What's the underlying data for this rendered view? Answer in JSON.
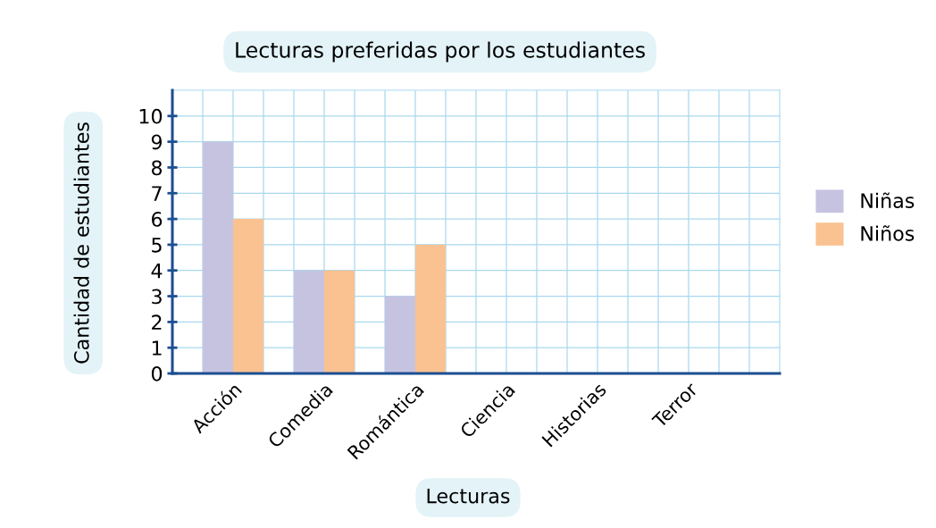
{
  "chart_data": {
    "type": "bar",
    "title": "Lecturas preferidas por los estudiantes",
    "xlabel": "Lecturas",
    "ylabel": "Cantidad de estudiantes",
    "categories": [
      "Acción",
      "Comedia",
      "Romántica",
      "Ciencia",
      "Historias",
      "Terror"
    ],
    "series": [
      {
        "name": "Niñas",
        "color": "#c6c3e1",
        "values": [
          9,
          4,
          3,
          0,
          0,
          0
        ]
      },
      {
        "name": "Niños",
        "color": "#fac291",
        "values": [
          6,
          4,
          5,
          0,
          0,
          0
        ]
      }
    ],
    "ylim": [
      0,
      11
    ],
    "yticks": [
      0,
      1,
      2,
      3,
      4,
      5,
      6,
      7,
      8,
      9,
      10
    ],
    "grid": true,
    "legend": "right"
  }
}
